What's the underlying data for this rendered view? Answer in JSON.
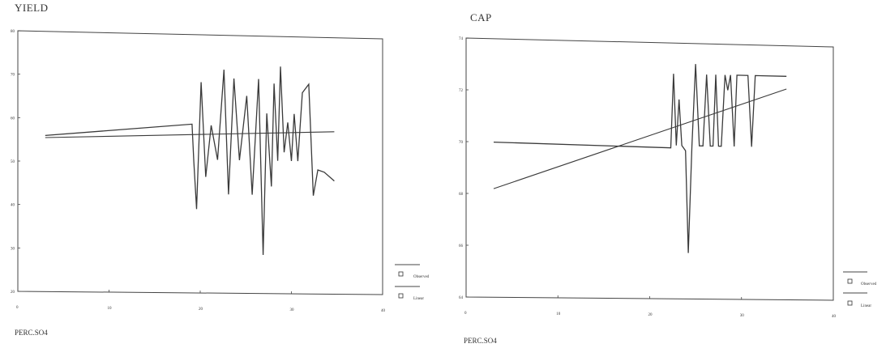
{
  "chart_data": [
    {
      "type": "line",
      "title": "YIELD",
      "xlabel": "PERC.SO4",
      "ylabel": "",
      "xlim": [
        0,
        40
      ],
      "ylim": [
        20,
        80
      ],
      "xticks": [
        "0",
        "10",
        "20",
        "30",
        "40"
      ],
      "yticks": [
        "20",
        "30",
        "40",
        "50",
        "60",
        "70",
        "80"
      ],
      "legend": {
        "placement": "right",
        "entries": [
          "Observed",
          "Linear"
        ]
      },
      "series": [
        {
          "name": "Observed",
          "x": [
            3,
            19.1,
            19.3,
            19.6,
            20.1,
            20.6,
            21.2,
            21.9,
            22.6,
            23.1,
            23.7,
            24.3,
            25.1,
            25.7,
            26.4,
            26.9,
            27.3,
            27.8,
            28.1,
            28.5,
            28.8,
            29.2,
            29.6,
            30.0,
            30.3,
            30.7,
            31.2,
            31.9,
            32.4,
            32.9,
            33.6,
            34.7
          ],
          "y": [
            56,
            59.2,
            50.5,
            39.5,
            69,
            47,
            59,
            51,
            72,
            43,
            70,
            51,
            66,
            43,
            70,
            29,
            62,
            45,
            69,
            51,
            73,
            53,
            60,
            51,
            62,
            51,
            67,
            69,
            43,
            49,
            48.5,
            46.5
          ]
        },
        {
          "name": "Linear",
          "x": [
            3,
            34.7
          ],
          "y": [
            55.5,
            58
          ]
        }
      ]
    },
    {
      "type": "line",
      "title": "CAP",
      "xlabel": "PERC.SO4",
      "ylabel": "",
      "xlim": [
        0,
        40
      ],
      "ylim": [
        64,
        74
      ],
      "xticks": [
        "0",
        "10",
        "20",
        "30",
        "40"
      ],
      "yticks": [
        "64",
        "66",
        "68",
        "70",
        "72",
        "74"
      ],
      "legend": {
        "placement": "right",
        "entries": [
          "Observed",
          "Linear"
        ]
      },
      "series": [
        {
          "name": "Observed",
          "x": [
            3,
            22.3,
            22.6,
            22.9,
            23.2,
            23.5,
            23.9,
            24.2,
            24.6,
            25.0,
            25.4,
            25.8,
            26.2,
            26.6,
            26.9,
            27.2,
            27.5,
            27.8,
            28.2,
            28.5,
            28.8,
            29.2,
            29.5,
            29.9,
            30.3,
            30.7,
            31.1,
            31.5,
            31.9,
            32.2,
            34.9
          ],
          "y": [
            70,
            69.9,
            72.8,
            70,
            71.8,
            70,
            69.8,
            65.8,
            70,
            73.2,
            70,
            70,
            72.8,
            70,
            70,
            72.8,
            70,
            70,
            72.8,
            72.2,
            72.8,
            70,
            72.8,
            72.8,
            72.8,
            72.8,
            70,
            72.8,
            72.8,
            72.8,
            72.8
          ]
        },
        {
          "name": "Linear",
          "x": [
            3,
            34.9
          ],
          "y": [
            68.2,
            72.3
          ]
        }
      ]
    }
  ]
}
